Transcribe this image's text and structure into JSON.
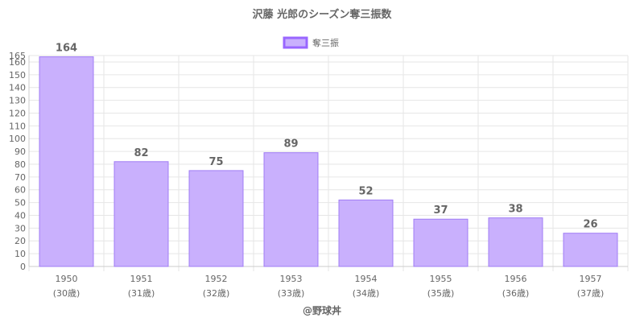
{
  "chart_data": {
    "type": "bar",
    "title": "沢藤 光郎のシーズン奪三振数",
    "legend": {
      "position": "top",
      "label": "奪三振"
    },
    "categories": [
      "1950",
      "1951",
      "1952",
      "1953",
      "1954",
      "1955",
      "1956",
      "1957"
    ],
    "category_sublabels": [
      "(30歳)",
      "(31歳)",
      "(32歳)",
      "(33歳)",
      "(34歳)",
      "(35歳)",
      "(36歳)",
      "(37歳)"
    ],
    "series": [
      {
        "name": "奪三振",
        "values": [
          164,
          82,
          75,
          89,
          52,
          37,
          38,
          26
        ]
      }
    ],
    "ylim": [
      0,
      165
    ],
    "yticks": [
      0,
      10,
      20,
      30,
      40,
      50,
      60,
      70,
      80,
      90,
      100,
      110,
      120,
      130,
      140,
      150,
      160,
      165
    ],
    "grid": true,
    "xlabel": "",
    "ylabel": ""
  },
  "colors": {
    "bar_fill": "#c9b0fd",
    "bar_stroke": "#a07cf5",
    "legend_fill": "#c9b0fd",
    "legend_stroke": "#9966ff",
    "grid": "#e6e6e6",
    "axis": "#cccccc",
    "tick_text": "#666666",
    "title_text": "#666666",
    "value_text": "#666666"
  },
  "footer": {
    "credit": "@野球丼"
  }
}
